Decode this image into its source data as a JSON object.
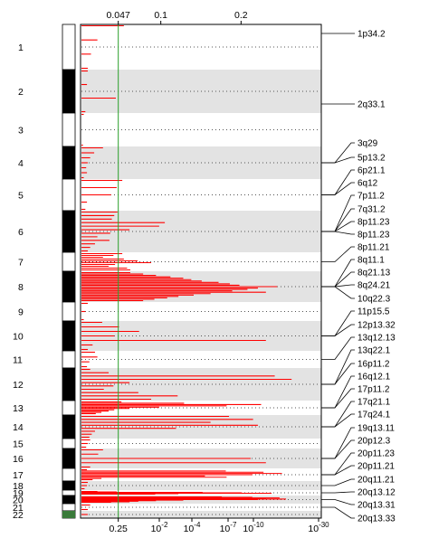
{
  "chart_data": {
    "type": "bar",
    "orientation": "horizontal",
    "top_axis": {
      "scale": "linear",
      "ticks": [
        {
          "value": 0.047,
          "label": "0.047"
        },
        {
          "value": 0.1,
          "label": "0.1"
        },
        {
          "value": 0.2,
          "label": "0.2"
        }
      ],
      "range": [
        0,
        0.3
      ]
    },
    "bottom_axis": {
      "scale": "log-pvalue",
      "ticks": [
        {
          "label": "0.25",
          "sup": ""
        },
        {
          "label": "10",
          "sup": "-2"
        },
        {
          "label": "10",
          "sup": "-4"
        },
        {
          "label": "10",
          "sup": "-7"
        },
        {
          "label": "10",
          "sup": "-10"
        },
        {
          "label": "10",
          "sup": "-30"
        }
      ]
    },
    "threshold": {
      "value": 0.047,
      "color": "#2ca02c"
    },
    "chromosomes": [
      "1",
      "2",
      "3",
      "4",
      "5",
      "6",
      "7",
      "8",
      "9",
      "10",
      "11",
      "12",
      "13",
      "14",
      "15",
      "16",
      "17",
      "18",
      "19",
      "20",
      "21",
      "22"
    ],
    "series": [
      {
        "chromosome": "1",
        "bars": [
          0.054,
          0.021,
          0.013,
          0.009
        ]
      },
      {
        "chromosome": "2",
        "bars": [
          0.009,
          0.008,
          0.044,
          0.006
        ]
      },
      {
        "chromosome": "3",
        "bars": [
          0.004,
          0.003
        ]
      },
      {
        "chromosome": "4",
        "bars": [
          0.028,
          0.017,
          0.012,
          0.009,
          0.007,
          0.008,
          0.004
        ]
      },
      {
        "chromosome": "5",
        "bars": [
          0.052,
          0.045,
          0.038,
          0.008,
          0.006
        ]
      },
      {
        "chromosome": "6",
        "bars": [
          0.046,
          0.042,
          0.039,
          0.105,
          0.098,
          0.061,
          0.037,
          0.021,
          0.036,
          0.018,
          0.012,
          0.009
        ]
      },
      {
        "chromosome": "7",
        "bars": [
          0.052,
          0.041,
          0.028,
          0.054,
          0.071,
          0.088,
          0.043,
          0.035,
          0.058,
          0.062
        ]
      },
      {
        "chromosome": "8",
        "bars": [
          0.062,
          0.078,
          0.094,
          0.112,
          0.128,
          0.138,
          0.151,
          0.172,
          0.186,
          0.198,
          0.245,
          0.221,
          0.208,
          0.189,
          0.231,
          0.162,
          0.141,
          0.122,
          0.108,
          0.092,
          0.078
        ]
      },
      {
        "chromosome": "9",
        "bars": [
          0.009,
          0.006,
          0.004
        ]
      },
      {
        "chromosome": "10",
        "bars": [
          0.027,
          0.048,
          0.073,
          0.042,
          0.231,
          0.015,
          0.009
        ]
      },
      {
        "chromosome": "11",
        "bars": [
          0.018,
          0.021,
          0.011,
          0.008
        ]
      },
      {
        "chromosome": "12",
        "bars": [
          0.012,
          0.035,
          0.242,
          0.263,
          0.061,
          0.041,
          0.029,
          0.072,
          0.121,
          0.088
        ]
      },
      {
        "chromosome": "13",
        "bars": [
          0.051,
          0.129,
          0.225,
          0.182,
          0.098,
          0.061,
          0.042,
          0.035,
          0.026,
          0.019
        ]
      },
      {
        "chromosome": "14",
        "bars": [
          0.185,
          0.215,
          0.162,
          0.221,
          0.119,
          0.018,
          0.014,
          0.011
        ]
      },
      {
        "chromosome": "15",
        "bars": [
          0.012,
          0.009,
          0.007
        ]
      },
      {
        "chromosome": "16",
        "bars": [
          0.028,
          0.022,
          0.212,
          0.231,
          0.012
        ]
      },
      {
        "chromosome": "17",
        "bars": [
          0.008,
          0.181,
          0.228,
          0.251,
          0.214,
          0.155,
          0.182,
          0.026,
          0.015
        ]
      },
      {
        "chromosome": "18",
        "bars": [
          0.009,
          0.008,
          0.005
        ]
      },
      {
        "chromosome": "19",
        "bars": [
          0.021,
          0.045,
          0.152,
          0.201,
          0.238,
          0.122,
          0.093
        ]
      },
      {
        "chromosome": "20",
        "bars": [
          0.176,
          0.214,
          0.248,
          0.231,
          0.256,
          0.221,
          0.128,
          0.094,
          0.072,
          0.061,
          0.038
        ]
      },
      {
        "chromosome": "21",
        "bars": [
          0.012,
          0.009
        ]
      },
      {
        "chromosome": "22",
        "bars": [
          0.009
        ]
      }
    ],
    "annotations": [
      {
        "label": "1p34.2",
        "chromosome": "1"
      },
      {
        "label": "2q33.1",
        "chromosome": "2"
      },
      {
        "label": "3q29",
        "chromosome": "4"
      },
      {
        "label": "5p13.2",
        "chromosome": "4"
      },
      {
        "label": "6p21.1",
        "chromosome": "5"
      },
      {
        "label": "6q12",
        "chromosome": "5"
      },
      {
        "label": "7p11.2",
        "chromosome": "6"
      },
      {
        "label": "7q31.2",
        "chromosome": "6"
      },
      {
        "label": "8p11.23",
        "chromosome": "6"
      },
      {
        "label": "8p11.23",
        "chromosome": "6"
      },
      {
        "label": "8p11.21",
        "chromosome": "7"
      },
      {
        "label": "8q11.1",
        "chromosome": "8"
      },
      {
        "label": "8q21.13",
        "chromosome": "8"
      },
      {
        "label": "8q24.21",
        "chromosome": "8"
      },
      {
        "label": "10q22.3",
        "chromosome": "8"
      },
      {
        "label": "11p15.5",
        "chromosome": "10"
      },
      {
        "label": "12p13.32",
        "chromosome": "10"
      },
      {
        "label": "13q12.13",
        "chromosome": "11"
      },
      {
        "label": "13q22.1",
        "chromosome": "12"
      },
      {
        "label": "16p11.2",
        "chromosome": "12"
      },
      {
        "label": "16q12.1",
        "chromosome": "13"
      },
      {
        "label": "17p11.2",
        "chromosome": "13"
      },
      {
        "label": "17q21.1",
        "chromosome": "14"
      },
      {
        "label": "17q24.1",
        "chromosome": "14"
      },
      {
        "label": "19q13.11",
        "chromosome": "16"
      },
      {
        "label": "20p12.3",
        "chromosome": "16"
      },
      {
        "label": "20p11.23",
        "chromosome": "17"
      },
      {
        "label": "20p11.21",
        "chromosome": "17"
      },
      {
        "label": "20q11.21",
        "chromosome": "18"
      },
      {
        "label": "20q13.12",
        "chromosome": "19"
      },
      {
        "label": "20q13.31",
        "chromosome": "20"
      },
      {
        "label": "20q13.33",
        "chromosome": "21"
      }
    ],
    "colors": {
      "bar": "#ff0000",
      "shade": "#e3e3e3",
      "threshold": "#2ca02c",
      "dotted": "#555555"
    }
  }
}
